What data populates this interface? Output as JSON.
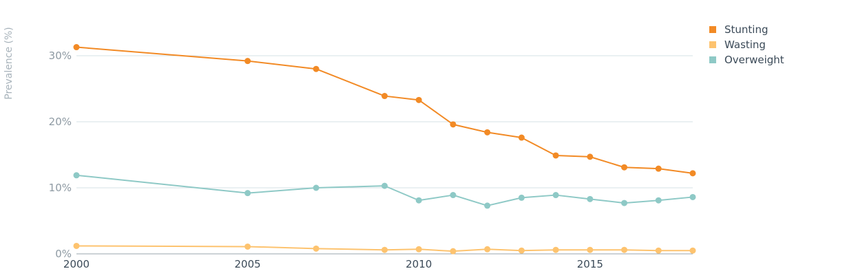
{
  "chart_data": {
    "type": "line",
    "ylabel": "Prevalence (%)",
    "xlim": [
      2000,
      2018
    ],
    "ylim": [
      0,
      30
    ],
    "grid": true,
    "legend_position": "top-right",
    "x_ticks": [
      {
        "value": 2000,
        "label": "2000"
      },
      {
        "value": 2005,
        "label": "2005"
      },
      {
        "value": 2010,
        "label": "2010"
      },
      {
        "value": 2015,
        "label": "2015"
      }
    ],
    "y_ticks": [
      {
        "value": 0,
        "label": "0%"
      },
      {
        "value": 10,
        "label": "10%"
      },
      {
        "value": 20,
        "label": "20%"
      },
      {
        "value": 30,
        "label": "30%"
      }
    ],
    "series": [
      {
        "name": "Stunting",
        "color": "#f28a25",
        "points": [
          {
            "x": 2000,
            "y": 31.3
          },
          {
            "x": 2005,
            "y": 29.2
          },
          {
            "x": 2007,
            "y": 28.0
          },
          {
            "x": 2009,
            "y": 23.9
          },
          {
            "x": 2010,
            "y": 23.3
          },
          {
            "x": 2011,
            "y": 19.6
          },
          {
            "x": 2012,
            "y": 18.4
          },
          {
            "x": 2013,
            "y": 17.6
          },
          {
            "x": 2014,
            "y": 14.9
          },
          {
            "x": 2015,
            "y": 14.7
          },
          {
            "x": 2016,
            "y": 13.1
          },
          {
            "x": 2017,
            "y": 12.9
          },
          {
            "x": 2018,
            "y": 12.2
          }
        ]
      },
      {
        "name": "Wasting",
        "color": "#fdc36f",
        "points": [
          {
            "x": 2000,
            "y": 1.2
          },
          {
            "x": 2005,
            "y": 1.1
          },
          {
            "x": 2007,
            "y": 0.8
          },
          {
            "x": 2009,
            "y": 0.6
          },
          {
            "x": 2010,
            "y": 0.7
          },
          {
            "x": 2011,
            "y": 0.4
          },
          {
            "x": 2012,
            "y": 0.7
          },
          {
            "x": 2013,
            "y": 0.5
          },
          {
            "x": 2014,
            "y": 0.6
          },
          {
            "x": 2015,
            "y": 0.6
          },
          {
            "x": 2016,
            "y": 0.6
          },
          {
            "x": 2017,
            "y": 0.5
          },
          {
            "x": 2018,
            "y": 0.5
          }
        ]
      },
      {
        "name": "Overweight",
        "color": "#8ec9c6",
        "points": [
          {
            "x": 2000,
            "y": 11.9
          },
          {
            "x": 2005,
            "y": 9.2
          },
          {
            "x": 2007,
            "y": 10.0
          },
          {
            "x": 2009,
            "y": 10.3
          },
          {
            "x": 2010,
            "y": 8.1
          },
          {
            "x": 2011,
            "y": 8.9
          },
          {
            "x": 2012,
            "y": 7.3
          },
          {
            "x": 2013,
            "y": 8.5
          },
          {
            "x": 2014,
            "y": 8.9
          },
          {
            "x": 2015,
            "y": 8.3
          },
          {
            "x": 2016,
            "y": 7.7
          },
          {
            "x": 2017,
            "y": 8.1
          },
          {
            "x": 2018,
            "y": 8.6
          }
        ]
      }
    ]
  },
  "style": {
    "grid_color": "#d6e0e6",
    "axis_color": "#9aa5ae",
    "tick_label_color": "#8e9aa3",
    "ylabel_color": "#a8b3bb",
    "legend_text_color": "#3b4a58"
  }
}
